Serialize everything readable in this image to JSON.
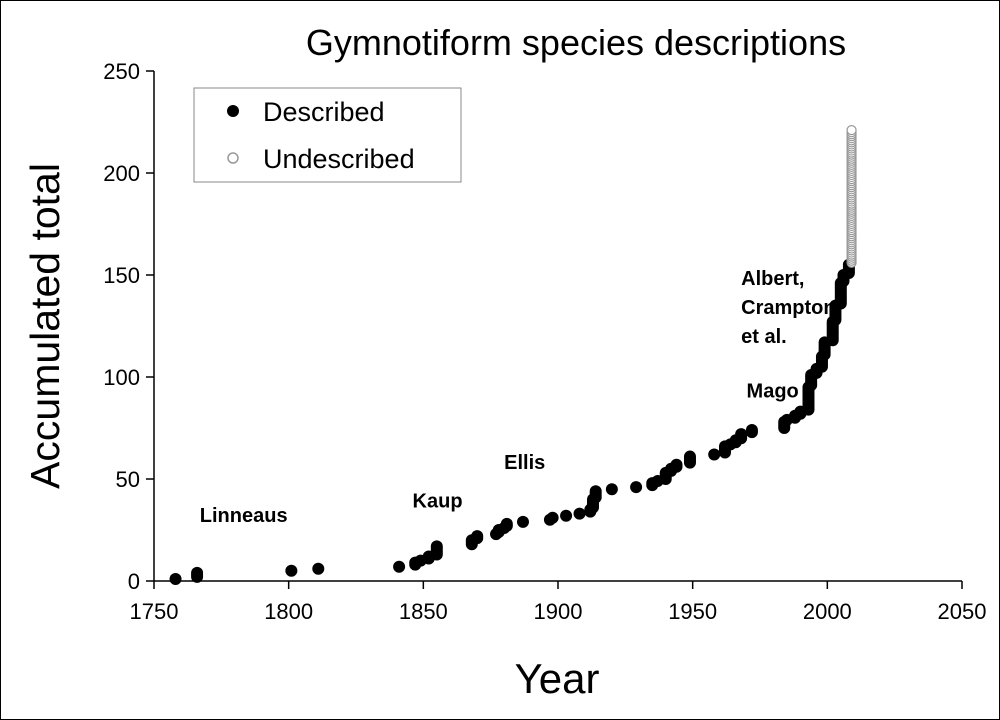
{
  "chart_data": {
    "type": "scatter",
    "title": "Gymnotiform species descriptions",
    "xlabel": "Year",
    "ylabel": "Accumulated total",
    "xlim": [
      1750,
      2050
    ],
    "ylim": [
      0,
      250
    ],
    "xticks": [
      1750,
      1800,
      1850,
      1900,
      1950,
      2000,
      2050
    ],
    "yticks": [
      0,
      50,
      100,
      150,
      200,
      250
    ],
    "grid": false,
    "legend": {
      "placement": "top-left",
      "entries": [
        "Described",
        "Undescribed"
      ]
    },
    "colors": {
      "described": "#000000",
      "undescribed": "#999999"
    },
    "point_groups_note": "each group: [year, first accumulated total, last accumulated total]",
    "series": [
      {
        "name": "Described",
        "groups": [
          [
            1758,
            1,
            1
          ],
          [
            1766,
            2,
            4
          ],
          [
            1801,
            5,
            5
          ],
          [
            1811,
            6,
            6
          ],
          [
            1841,
            7,
            7
          ],
          [
            1847,
            8,
            9
          ],
          [
            1849,
            10,
            10
          ],
          [
            1852,
            11,
            12
          ],
          [
            1855,
            13,
            17
          ],
          [
            1868,
            18,
            20
          ],
          [
            1870,
            21,
            22
          ],
          [
            1877,
            23,
            23
          ],
          [
            1878,
            24,
            25
          ],
          [
            1880,
            26,
            26
          ],
          [
            1881,
            27,
            28
          ],
          [
            1887,
            29,
            29
          ],
          [
            1897,
            30,
            30
          ],
          [
            1898,
            31,
            31
          ],
          [
            1903,
            32,
            32
          ],
          [
            1908,
            33,
            33
          ],
          [
            1912,
            34,
            35
          ],
          [
            1913,
            36,
            40
          ],
          [
            1914,
            41,
            44
          ],
          [
            1920,
            45,
            45
          ],
          [
            1929,
            46,
            46
          ],
          [
            1935,
            47,
            48
          ],
          [
            1937,
            49,
            49
          ],
          [
            1940,
            50,
            53
          ],
          [
            1942,
            54,
            55
          ],
          [
            1944,
            56,
            57
          ],
          [
            1949,
            58,
            61
          ],
          [
            1958,
            62,
            62
          ],
          [
            1962,
            63,
            66
          ],
          [
            1964,
            67,
            67
          ],
          [
            1966,
            68,
            69
          ],
          [
            1968,
            70,
            72
          ],
          [
            1972,
            73,
            74
          ],
          [
            1984,
            75,
            78
          ],
          [
            1985,
            79,
            79
          ],
          [
            1988,
            80,
            81
          ],
          [
            1990,
            82,
            83
          ],
          [
            1993,
            84,
            95
          ],
          [
            1994,
            96,
            101
          ],
          [
            1996,
            102,
            104
          ],
          [
            1998,
            105,
            110
          ],
          [
            1999,
            111,
            117
          ],
          [
            2002,
            118,
            127
          ],
          [
            2003,
            128,
            135
          ],
          [
            2005,
            136,
            146
          ],
          [
            2006,
            147,
            150
          ],
          [
            2008,
            151,
            155
          ]
        ]
      },
      {
        "name": "Undescribed",
        "groups": [
          [
            2009,
            156,
            221
          ]
        ]
      }
    ],
    "annotations": [
      {
        "text": "Linneaus",
        "x": 1767,
        "y": 29
      },
      {
        "text": "Kaup",
        "x": 1846,
        "y": 36
      },
      {
        "text": "Ellis",
        "x": 1880,
        "y": 55
      },
      {
        "text": "Mago",
        "x": 1970,
        "y": 90
      },
      {
        "text": [
          "Albert,",
          "Crampton",
          "et al."
        ],
        "x": 1968,
        "y": 145
      }
    ]
  }
}
